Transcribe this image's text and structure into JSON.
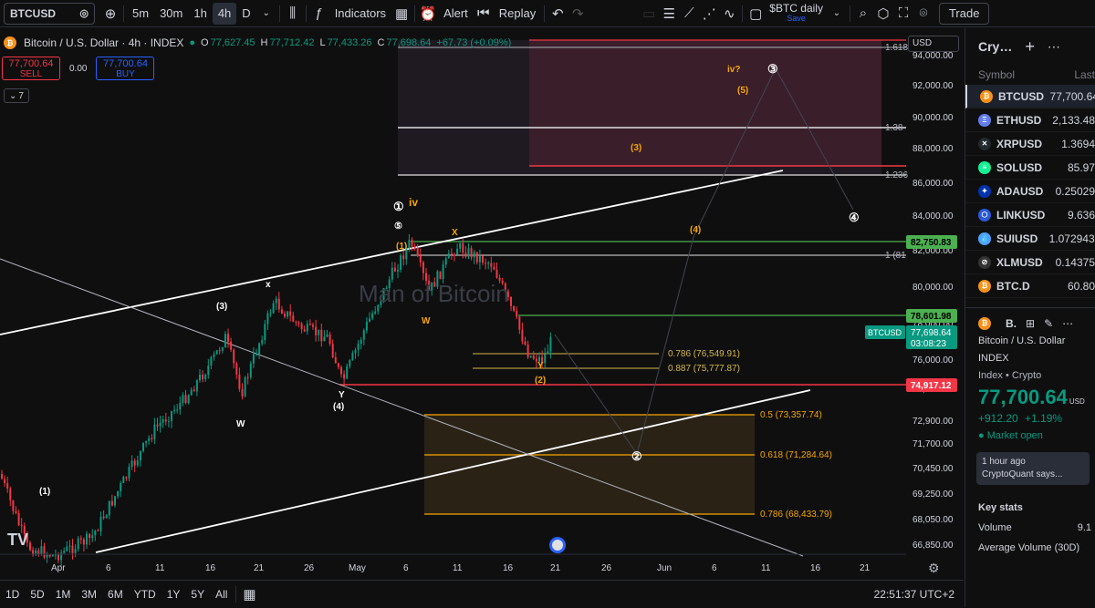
{
  "topbar": {
    "symbol": "BTCUSD",
    "intervals": [
      "5m",
      "30m",
      "1h",
      "4h",
      "D"
    ],
    "active_interval": "4h",
    "indicators": "Indicators",
    "alert": "Alert",
    "replay": "Replay",
    "layout_name": "$BTC daily",
    "layout_sub": "Save",
    "trade": "Trade"
  },
  "legend": {
    "title": "Bitcoin / U.S. Dollar · 4h · INDEX",
    "o_label": "O",
    "o": "77,627.45",
    "h_label": "H",
    "h": "77,712.42",
    "l_label": "L",
    "l": "77,433.26",
    "c_label": "C",
    "c": "77,698.64",
    "change": "+67.73 (+0.09%)",
    "sell_price": "77,700.64",
    "sell": "SELL",
    "spread": "0.00",
    "buy_price": "77,700.64",
    "buy": "BUY",
    "indicators_count": "7"
  },
  "watermark": "Man of Bitcoin",
  "currency": "USD",
  "chart_data": {
    "type": "candlestick",
    "title": "Bitcoin / U.S. Dollar · 4h · INDEX",
    "y_ticks": [
      "94,000.00",
      "92,000.00",
      "90,000.00",
      "88,000.00",
      "86,000.00",
      "84,000.00",
      "82,000.00",
      "80,000.00",
      "78,000.00",
      "76,000.00",
      "74,500.00",
      "72,900.00",
      "71,700.00",
      "70,450.00",
      "69,250.00",
      "68,050.00",
      "66,850.00"
    ],
    "x_ticks": [
      "Apr",
      "6",
      "11",
      "16",
      "21",
      "26",
      "May",
      "6",
      "11",
      "16",
      "21",
      "26",
      "Jun",
      "6",
      "11",
      "16",
      "21"
    ],
    "last_price": "77,698.64",
    "countdown": "03:08:23",
    "last_symbol": "BTCUSD",
    "price_labels": {
      "green_high": "82,750.83",
      "green_low": "78,601.98",
      "red_low": "74,917.12"
    },
    "fib_upper": [
      "1.618",
      "1.38",
      "1.236",
      "1 (81"
    ],
    "fib_retrace_small": [
      "0.786 (76,549.91)",
      "0.887 (75,777.87)"
    ],
    "fib_retrace_box": [
      "0.5 (73,357.74)",
      "0.618 (71,284.64)",
      "0.786 (68,433.79)"
    ],
    "wave_labels_white": [
      "①",
      "⑤",
      "x",
      "(3)",
      "W",
      "Y",
      "(4)",
      "(1)",
      "③",
      "④",
      "②"
    ],
    "wave_labels_orange": [
      "iv",
      "(1)",
      "X",
      "W",
      "Y",
      "(2)",
      "(3)",
      "(4)",
      "(5)",
      "iv?"
    ]
  },
  "bottombar": {
    "ranges": [
      "1D",
      "5D",
      "1M",
      "3M",
      "6M",
      "YTD",
      "1Y",
      "5Y",
      "All"
    ],
    "time": "22:51:37 UTC+2"
  },
  "watchlist": {
    "title": "Cry…",
    "col_symbol": "Symbol",
    "col_last": "Last",
    "rows": [
      {
        "sym": "BTCUSD",
        "last": "77,700.64",
        "color": "#f7931a",
        "glyph": "₿"
      },
      {
        "sym": "ETHUSD",
        "last": "2,133.48",
        "color": "#627eea",
        "glyph": "Ξ"
      },
      {
        "sym": "XRPUSD",
        "last": "1.3694",
        "color": "#23292f",
        "glyph": "✕"
      },
      {
        "sym": "SOLUSD",
        "last": "85.97",
        "color": "#14f195",
        "glyph": "≡"
      },
      {
        "sym": "ADAUSD",
        "last": "0.25029",
        "color": "#0033ad",
        "glyph": "✦"
      },
      {
        "sym": "LINKUSD",
        "last": "9.636",
        "color": "#2a5ada",
        "glyph": "⬡"
      },
      {
        "sym": "SUIUSD",
        "last": "1.0729436",
        "color": "#4da2ff",
        "glyph": "💧"
      },
      {
        "sym": "XLMUSD",
        "last": "0.14375",
        "color": "#333333",
        "glyph": "⊘"
      },
      {
        "sym": "BTC.D",
        "last": "60.80",
        "color": "#f7931a",
        "glyph": "₿"
      }
    ]
  },
  "details": {
    "short": "B.",
    "name": "Bitcoin / U.S. Dollar",
    "exchange": "INDEX",
    "type": "Index • Crypto",
    "price": "77,700.64",
    "unit": "USD",
    "change": "+912.20",
    "change_pct": "+1.19%",
    "market": "Market open",
    "news_time": "1 hour ago",
    "news_text": "CryptoQuant says...",
    "stats_title": "Key stats",
    "volume_label": "Volume",
    "volume_val": "9.1",
    "avg_volume_label": "Average Volume (30D)"
  },
  "colors": {
    "up": "#089981",
    "down": "#f23645",
    "orange": "#f7a600",
    "green_line": "#4caf50"
  }
}
